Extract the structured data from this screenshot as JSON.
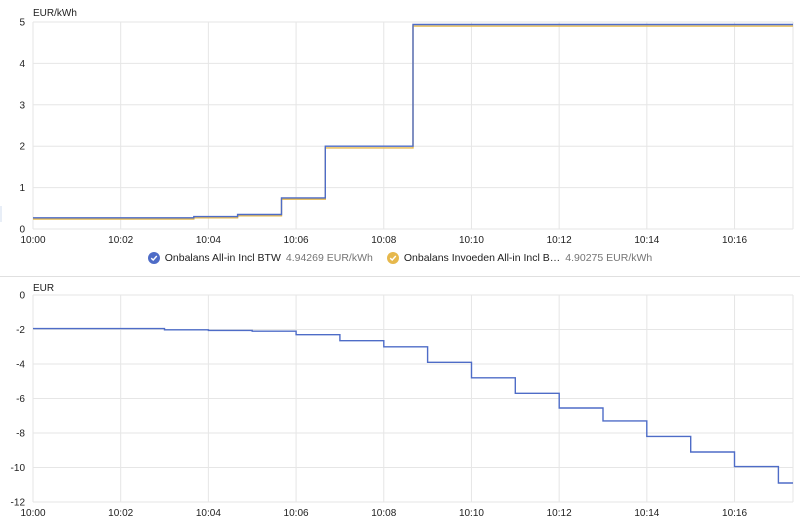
{
  "chart_data": [
    {
      "type": "line",
      "ylabel": "EUR/kWh",
      "ylim": [
        0,
        5
      ],
      "yticks": [
        "0",
        "1",
        "2",
        "3",
        "4",
        "5"
      ],
      "xlim": [
        "10:00",
        "10:17:20"
      ],
      "xticks": [
        "10:00",
        "10:02",
        "10:04",
        "10:06",
        "10:08",
        "10:10",
        "10:12",
        "10:14",
        "10:16"
      ],
      "step": true,
      "grid": true,
      "legend_position": "bottom",
      "series": [
        {
          "name": "Onbalans All-in Incl BTW",
          "color": "#4e6cc7",
          "value_label": "4.94269 EUR/kWh",
          "points": [
            [
              "10:00:00",
              0.27
            ],
            [
              "10:03:40",
              0.3
            ],
            [
              "10:04:40",
              0.35
            ],
            [
              "10:05:40",
              0.75
            ],
            [
              "10:06:40",
              2.0
            ],
            [
              "10:08:40",
              4.94
            ]
          ]
        },
        {
          "name": "Onbalans Invoeden All-in Incl B…",
          "color": "#e6b84c",
          "value_label": "4.90275 EUR/kWh",
          "points": [
            [
              "10:00:00",
              0.24
            ],
            [
              "10:03:40",
              0.27
            ],
            [
              "10:04:40",
              0.32
            ],
            [
              "10:05:40",
              0.72
            ],
            [
              "10:06:40",
              1.96
            ],
            [
              "10:08:40",
              4.9
            ]
          ]
        }
      ]
    },
    {
      "type": "line",
      "ylabel": "EUR",
      "ylim": [
        -12,
        0
      ],
      "yticks": [
        "0",
        "-2",
        "-4",
        "-6",
        "-8",
        "-10",
        "-12"
      ],
      "xlim": [
        "10:00",
        "10:17:20"
      ],
      "xticks": [
        "10:00",
        "10:02",
        "10:04",
        "10:06",
        "10:08",
        "10:10",
        "10:12",
        "10:14",
        "10:16"
      ],
      "step": true,
      "grid": true,
      "series": [
        {
          "color": "#4e6cc7",
          "points": [
            [
              "10:00:00",
              -1.95
            ],
            [
              "10:02:00",
              -1.95
            ],
            [
              "10:03:00",
              -2.02
            ],
            [
              "10:04:00",
              -2.05
            ],
            [
              "10:05:00",
              -2.1
            ],
            [
              "10:06:00",
              -2.3
            ],
            [
              "10:07:00",
              -2.65
            ],
            [
              "10:08:00",
              -3.0
            ],
            [
              "10:09:00",
              -3.9
            ],
            [
              "10:10:00",
              -4.8
            ],
            [
              "10:11:00",
              -5.7
            ],
            [
              "10:12:00",
              -6.55
            ],
            [
              "10:13:00",
              -7.3
            ],
            [
              "10:14:00",
              -8.2
            ],
            [
              "10:15:00",
              -9.1
            ],
            [
              "10:16:00",
              -9.95
            ],
            [
              "10:17:00",
              -10.9
            ],
            [
              "10:17:20",
              -10.9
            ]
          ]
        }
      ]
    }
  ]
}
